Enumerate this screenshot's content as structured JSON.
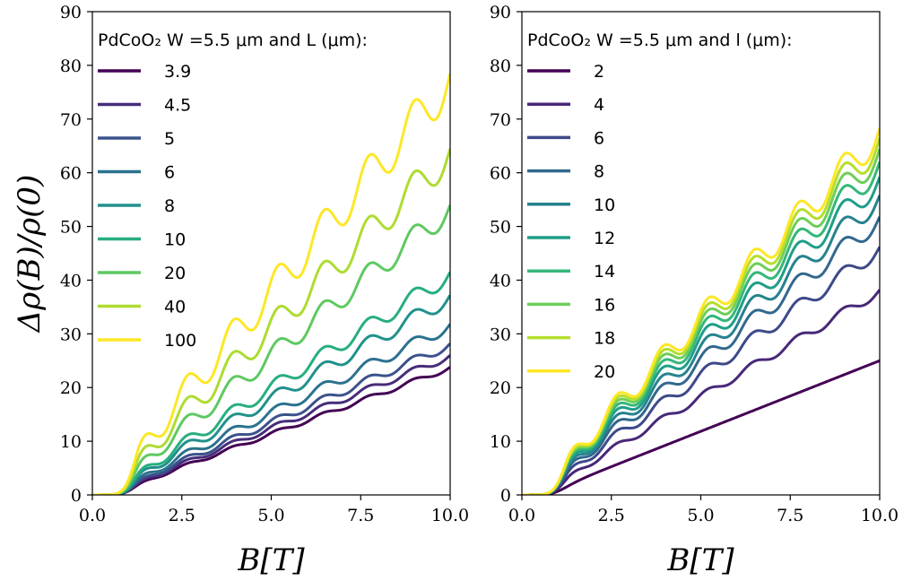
{
  "chart_data": [
    {
      "type": "line",
      "legend_title": "PdCoO₂ W =5.5 μm and L (μm):",
      "xlabel": "B[T]",
      "ylabel": "Δρ(B)/ρ(0)",
      "xlim": [
        0,
        10
      ],
      "ylim": [
        0,
        90
      ],
      "xticks": [
        "0.0",
        "2.5",
        "5.0",
        "7.5",
        "10.0"
      ],
      "yticks": [
        "0",
        "10",
        "20",
        "30",
        "40",
        "50",
        "60",
        "70",
        "80",
        "90"
      ],
      "legend_position": "upper-left",
      "grid": false,
      "series": [
        {
          "name": "3.9",
          "color": "#440154",
          "slope": 2.35,
          "amp": 0.25,
          "end": 23.8
        },
        {
          "name": "4.5",
          "color": "#472d7b",
          "slope": 2.55,
          "amp": 0.35,
          "end": 26.0
        },
        {
          "name": "5",
          "color": "#3b528b",
          "slope": 2.75,
          "amp": 0.45,
          "end": 28.2
        },
        {
          "name": "6",
          "color": "#2c728e",
          "slope": 3.1,
          "amp": 0.6,
          "end": 31.8
        },
        {
          "name": "8",
          "color": "#21918c",
          "slope": 3.65,
          "amp": 0.8,
          "end": 37.2
        },
        {
          "name": "10",
          "color": "#28ae80",
          "slope": 4.1,
          "amp": 0.9,
          "end": 41.5
        },
        {
          "name": "20",
          "color": "#5ec962",
          "slope": 5.3,
          "amp": 1.3,
          "end": 54.0
        },
        {
          "name": "40",
          "color": "#addc30",
          "slope": 6.3,
          "amp": 1.8,
          "end": 64.5
        },
        {
          "name": "100",
          "color": "#fde725",
          "slope": 7.5,
          "amp": 2.3,
          "end": 78.5
        }
      ]
    },
    {
      "type": "line",
      "legend_title": "PdCoO₂ W =5.5 μm and l (μm):",
      "xlabel": "B[T]",
      "ylabel": "",
      "xlim": [
        0,
        10
      ],
      "ylim": [
        0,
        90
      ],
      "xticks": [
        "0.0",
        "2.5",
        "5.0",
        "7.5",
        "10.0"
      ],
      "yticks": [
        "0",
        "10",
        "20",
        "30",
        "40",
        "50",
        "60",
        "70",
        "80",
        "90"
      ],
      "legend_position": "upper-left",
      "grid": false,
      "series": [
        {
          "name": "2",
          "color": "#440154",
          "slope": 2.5,
          "amp": 0.0,
          "end": 25.0
        },
        {
          "name": "4",
          "color": "#482878",
          "slope": 3.8,
          "amp": 0.5,
          "end": 38.2
        },
        {
          "name": "6",
          "color": "#3e4989",
          "slope": 4.6,
          "amp": 0.8,
          "end": 46.2
        },
        {
          "name": "8",
          "color": "#31688e",
          "slope": 5.15,
          "amp": 1.0,
          "end": 51.8
        },
        {
          "name": "10",
          "color": "#26828e",
          "slope": 5.55,
          "amp": 1.15,
          "end": 55.8
        },
        {
          "name": "12",
          "color": "#1f9e89",
          "slope": 5.9,
          "amp": 1.3,
          "end": 59.2
        },
        {
          "name": "14",
          "color": "#35b779",
          "slope": 6.15,
          "amp": 1.4,
          "end": 62.0
        },
        {
          "name": "16",
          "color": "#6ece58",
          "slope": 6.4,
          "amp": 1.5,
          "end": 64.4
        },
        {
          "name": "18",
          "color": "#b5de2b",
          "slope": 6.6,
          "amp": 1.6,
          "end": 66.4
        },
        {
          "name": "20",
          "color": "#fde725",
          "slope": 6.8,
          "amp": 1.7,
          "end": 68.3
        }
      ]
    }
  ]
}
